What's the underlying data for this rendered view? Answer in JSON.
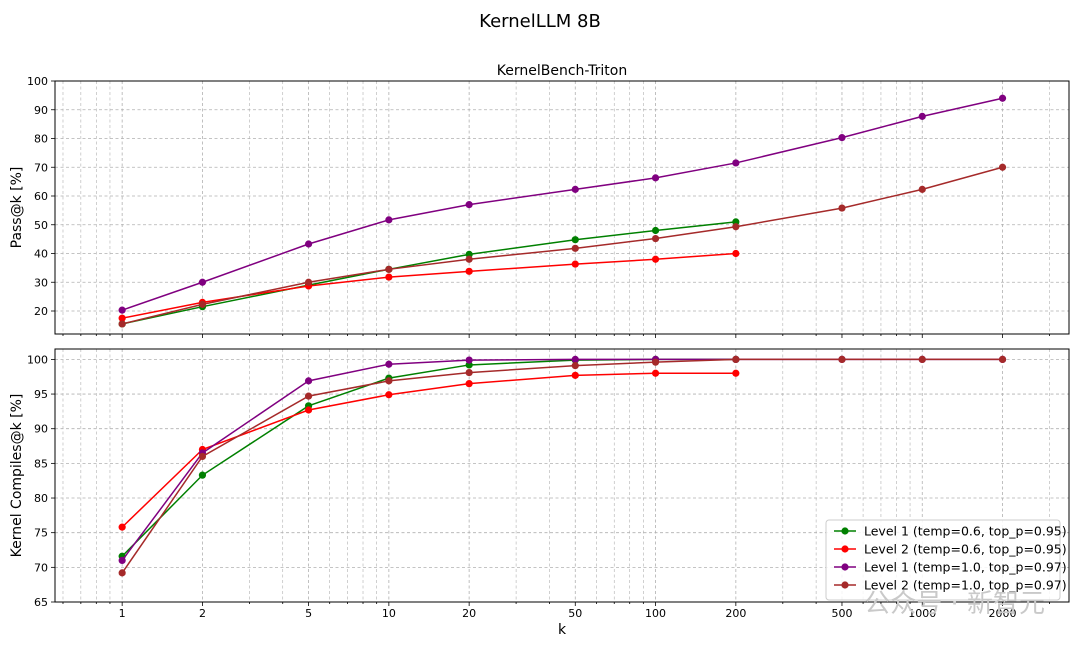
{
  "title": "KernelLLM 8B",
  "watermark": "公众号 · 新智元",
  "chart_data": [
    {
      "type": "line",
      "title": "KernelBench-Triton",
      "xlabel": "",
      "ylabel": "Pass@k [%]",
      "xscale": "log",
      "x_ticks": [
        1,
        2,
        5,
        10,
        20,
        50,
        100,
        200,
        500,
        1000,
        2000
      ],
      "ylim": [
        12,
        100
      ],
      "y_ticks": [
        20,
        30,
        40,
        50,
        60,
        70,
        80,
        90,
        100
      ],
      "grid": true,
      "series": [
        {
          "name": "Level 1 (temp=0.6, top_p=0.95)",
          "color": "#008000",
          "x": [
            1,
            2,
            5,
            10,
            20,
            50,
            100,
            200
          ],
          "y": [
            15.5,
            21.5,
            29.0,
            34.5,
            39.7,
            44.8,
            48.0,
            51.0
          ]
        },
        {
          "name": "Level 2 (temp=0.6, top_p=0.95)",
          "color": "#ff0000",
          "x": [
            1,
            2,
            5,
            10,
            20,
            50,
            100,
            200
          ],
          "y": [
            17.5,
            23.0,
            28.7,
            31.8,
            33.8,
            36.3,
            38.0,
            40.0
          ]
        },
        {
          "name": "Level 1 (temp=1.0, top_p=0.97)",
          "color": "#800080",
          "x": [
            1,
            2,
            5,
            10,
            20,
            50,
            100,
            200,
            500,
            1000,
            2000
          ],
          "y": [
            20.3,
            30.0,
            43.3,
            51.7,
            57.0,
            62.3,
            66.3,
            71.5,
            80.3,
            87.7,
            94.0
          ]
        },
        {
          "name": "Level 2 (temp=1.0, top_p=0.97)",
          "color": "#a52a2a",
          "x": [
            1,
            2,
            5,
            10,
            20,
            50,
            100,
            200,
            500,
            1000,
            2000
          ],
          "y": [
            15.5,
            22.3,
            30.0,
            34.5,
            38.0,
            41.8,
            45.2,
            49.3,
            55.8,
            62.3,
            70.0
          ]
        }
      ]
    },
    {
      "type": "line",
      "title": "",
      "xlabel": "k",
      "ylabel": "Kernel Compiles@k [%]",
      "xscale": "log",
      "x_ticks": [
        1,
        2,
        5,
        10,
        20,
        50,
        100,
        200,
        500,
        1000,
        2000
      ],
      "ylim": [
        65,
        101.5
      ],
      "y_ticks": [
        65,
        70,
        75,
        80,
        85,
        90,
        95,
        100
      ],
      "grid": true,
      "legend_loc": "lower-right",
      "series": [
        {
          "name": "Level 1 (temp=0.6, top_p=0.95)",
          "color": "#008000",
          "x": [
            1,
            2,
            5,
            10,
            20,
            50,
            100,
            200
          ],
          "y": [
            71.6,
            83.3,
            93.3,
            97.3,
            99.2,
            99.9,
            100.0,
            100.0
          ]
        },
        {
          "name": "Level 2 (temp=0.6, top_p=0.95)",
          "color": "#ff0000",
          "x": [
            1,
            2,
            5,
            10,
            20,
            50,
            100,
            200
          ],
          "y": [
            75.8,
            87.0,
            92.7,
            94.9,
            96.5,
            97.7,
            98.0,
            98.0
          ]
        },
        {
          "name": "Level 1 (temp=1.0, top_p=0.97)",
          "color": "#800080",
          "x": [
            1,
            2,
            5,
            10,
            20,
            50,
            100,
            200,
            500,
            1000,
            2000
          ],
          "y": [
            71.0,
            86.5,
            96.9,
            99.3,
            99.9,
            100.0,
            100.0,
            100.0,
            100.0,
            100.0,
            100.0
          ]
        },
        {
          "name": "Level 2 (temp=1.0, top_p=0.97)",
          "color": "#a52a2a",
          "x": [
            1,
            2,
            5,
            10,
            20,
            50,
            100,
            200,
            500,
            1000,
            2000
          ],
          "y": [
            69.2,
            86.0,
            94.7,
            96.9,
            98.1,
            99.1,
            99.6,
            100.0,
            100.0,
            100.0,
            100.0
          ]
        }
      ]
    }
  ]
}
